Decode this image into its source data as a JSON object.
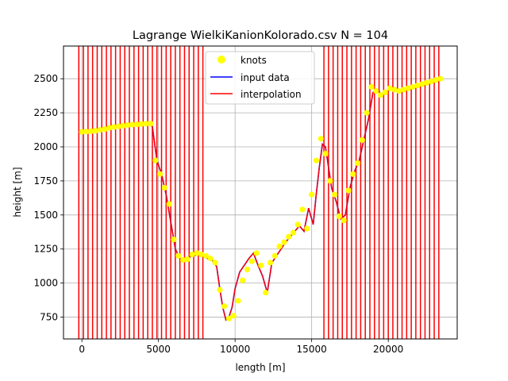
{
  "chart_data": {
    "type": "line",
    "title": "Lagrange WielkiKanionKolorado.csv N = 104",
    "xlabel": "length [m]",
    "ylabel": "height [m]",
    "xlim": [
      -1200,
      24500
    ],
    "ylim": [
      590,
      2740
    ],
    "xticks": [
      0,
      5000,
      10000,
      15000,
      20000
    ],
    "yticks": [
      750,
      1000,
      1250,
      1500,
      1750,
      2000,
      2250,
      2500
    ],
    "xtick_labels": [
      "0",
      "5000",
      "10000",
      "15000",
      "20000"
    ],
    "ytick_labels": [
      "750",
      "1000",
      "1250",
      "1500",
      "1750",
      "2000",
      "2250",
      "2500"
    ],
    "grid": true,
    "legend_position": "top-center",
    "colors": {
      "knots": "#ffff00",
      "input": "#0000ff",
      "interp": "#ff0000",
      "grid": "#b0b0b0"
    },
    "legend": {
      "knots": "knots",
      "input": "input data",
      "interp": "interpolation"
    },
    "series": [
      {
        "name": "input data",
        "x": [
          0,
          500,
          1000,
          1500,
          2000,
          2500,
          3000,
          3500,
          4000,
          4300,
          4600,
          4900,
          5200,
          5500,
          5800,
          6100,
          6400,
          6700,
          7000,
          7300,
          7600,
          7900,
          8200,
          8500,
          8800,
          9000,
          9200,
          9400,
          9600,
          9800,
          10000,
          10300,
          10600,
          10900,
          11200,
          11500,
          11800,
          12100,
          12400,
          12700,
          13000,
          13300,
          13600,
          13900,
          14200,
          14500,
          14800,
          15100,
          15300,
          15500,
          15700,
          15900,
          16100,
          16300,
          16600,
          16900,
          17200,
          17500,
          17800,
          18100,
          18400,
          18700,
          19000,
          19300,
          19600,
          19900,
          20200,
          20500,
          20800,
          21100,
          21400,
          21700,
          22000,
          22300,
          22600,
          22900,
          23200,
          23400
        ],
        "y": [
          2110,
          2115,
          2120,
          2135,
          2145,
          2150,
          2160,
          2165,
          2170,
          2170,
          2150,
          1900,
          1800,
          1650,
          1450,
          1250,
          1180,
          1160,
          1190,
          1200,
          1210,
          1200,
          1180,
          1170,
          1120,
          960,
          820,
          730,
          750,
          820,
          960,
          1080,
          1130,
          1180,
          1220,
          1130,
          1050,
          930,
          1150,
          1200,
          1250,
          1300,
          1340,
          1380,
          1420,
          1380,
          1550,
          1430,
          1650,
          1850,
          2020,
          2000,
          1850,
          1700,
          1600,
          1470,
          1500,
          1700,
          1820,
          1900,
          2050,
          2200,
          2400,
          2420,
          2380,
          2400,
          2430,
          2420,
          2410,
          2420,
          2430,
          2440,
          2450,
          2460,
          2470,
          2480,
          2490,
          2500
        ]
      },
      {
        "name": "interpolation",
        "x": [
          0,
          500,
          1000,
          1500,
          2000,
          2500,
          3000,
          3500,
          4000,
          4300,
          4600,
          4900,
          5200,
          5500,
          5800,
          6100,
          6400,
          6700,
          7000,
          7300,
          7600,
          7900,
          8200,
          8500,
          8800,
          9000,
          9200,
          9400,
          9600,
          9800,
          10000,
          10300,
          10600,
          10900,
          11200,
          11500,
          11800,
          12100,
          12400,
          12700,
          13000,
          13300,
          13600,
          13900,
          14200,
          14500,
          14800,
          15100,
          15300,
          15500,
          15700,
          15900,
          16100,
          16300,
          16600,
          16900,
          17200,
          17500,
          17800,
          18100,
          18400,
          18700,
          19000,
          19300,
          19600,
          19900,
          20200,
          20500,
          20800,
          21100,
          21400,
          21700,
          22000,
          22300,
          22600,
          22900,
          23200,
          23400
        ],
        "y": [
          2110,
          2115,
          2120,
          2135,
          2145,
          2150,
          2160,
          2165,
          2170,
          2170,
          2150,
          1900,
          1800,
          1650,
          1450,
          1250,
          1180,
          1160,
          1190,
          1200,
          1210,
          1200,
          1180,
          1170,
          1120,
          960,
          820,
          730,
          750,
          820,
          960,
          1080,
          1130,
          1180,
          1220,
          1130,
          1050,
          930,
          1150,
          1200,
          1250,
          1300,
          1340,
          1380,
          1420,
          1380,
          1550,
          1430,
          1650,
          1850,
          2020,
          2000,
          1850,
          1700,
          1600,
          1470,
          1500,
          1700,
          1820,
          1900,
          2050,
          2200,
          2400,
          2420,
          2380,
          2400,
          2430,
          2420,
          2410,
          2420,
          2430,
          2440,
          2450,
          2460,
          2470,
          2480,
          2490,
          2500
        ]
      },
      {
        "name": "knots",
        "x": [
          0,
          300,
          600,
          900,
          1200,
          1500,
          1800,
          2100,
          2400,
          2700,
          3000,
          3300,
          3600,
          3900,
          4200,
          4500,
          4800,
          5100,
          5400,
          5700,
          6000,
          6300,
          6600,
          6900,
          7200,
          7500,
          7800,
          8100,
          8400,
          8700,
          9000,
          9300,
          9600,
          9900,
          10200,
          10500,
          10800,
          11100,
          11400,
          11700,
          12000,
          12300,
          12600,
          12900,
          13200,
          13500,
          13800,
          14100,
          14400,
          14700,
          15000,
          15300,
          15600,
          15900,
          16200,
          16500,
          16800,
          17100,
          17400,
          17700,
          18000,
          18300,
          18600,
          18900,
          19200,
          19500,
          19800,
          20100,
          20400,
          20700,
          21000,
          21300,
          21600,
          21900,
          22200,
          22500,
          22800,
          23100,
          23400
        ],
        "y": [
          2110,
          2112,
          2115,
          2118,
          2125,
          2130,
          2140,
          2145,
          2150,
          2155,
          2160,
          2163,
          2165,
          2168,
          2170,
          2170,
          1900,
          1800,
          1700,
          1580,
          1320,
          1200,
          1170,
          1175,
          1210,
          1220,
          1210,
          1200,
          1180,
          1150,
          950,
          830,
          740,
          760,
          870,
          1020,
          1100,
          1160,
          1220,
          1130,
          930,
          1150,
          1200,
          1270,
          1300,
          1340,
          1370,
          1430,
          1540,
          1400,
          1650,
          1900,
          2060,
          1950,
          1750,
          1650,
          1490,
          1460,
          1680,
          1800,
          1880,
          2050,
          2250,
          2440,
          2410,
          2380,
          2400,
          2430,
          2420,
          2410,
          2420,
          2430,
          2440,
          2450,
          2460,
          2470,
          2480,
          2490,
          2500
        ]
      }
    ],
    "oscillation_bands": [
      {
        "x_start": -200,
        "x_end": 7900,
        "period": 300
      },
      {
        "x_start": 15800,
        "x_end": 23400,
        "period": 300
      }
    ]
  }
}
